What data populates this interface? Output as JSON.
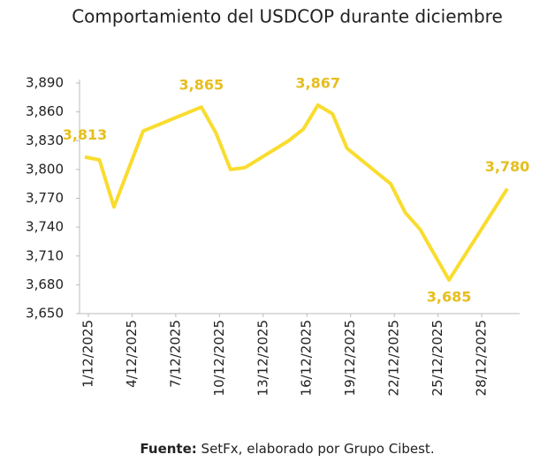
{
  "chart_data": {
    "type": "line",
    "title": "Comportamiento del USDCOP durante diciembre",
    "x": [
      "1/12/2025",
      "2/12/2025",
      "3/12/2025",
      "5/12/2025",
      "9/12/2025",
      "10/12/2025",
      "11/12/2025",
      "12/12/2025",
      "15/12/2025",
      "16/12/2025",
      "17/12/2025",
      "18/12/2025",
      "19/12/2025",
      "22/12/2025",
      "23/12/2025",
      "24/12/2025",
      "26/12/2025",
      "30/12/2025"
    ],
    "series": [
      {
        "name": "USDCOP",
        "color": "#f9dc2e",
        "values": [
          3813,
          3810,
          3761,
          3840,
          3865,
          3838,
          3800,
          3802,
          3830,
          3842,
          3867,
          3858,
          3822,
          3785,
          3755,
          3738,
          3685,
          3780
        ],
        "value_labels": [
          "3,813",
          null,
          null,
          null,
          "3,865",
          null,
          null,
          null,
          null,
          null,
          "3,867",
          null,
          null,
          null,
          null,
          null,
          "3,685",
          "3,780"
        ]
      }
    ],
    "ylim": [
      3650,
      3890
    ],
    "yticks": [
      {
        "value": 3650,
        "label": "3,650"
      },
      {
        "value": 3680,
        "label": "3,680"
      },
      {
        "value": 3710,
        "label": "3,710"
      },
      {
        "value": 3740,
        "label": "3,740"
      },
      {
        "value": 3770,
        "label": "3,770"
      },
      {
        "value": 3800,
        "label": "3,800"
      },
      {
        "value": 3830,
        "label": "3,830"
      },
      {
        "value": 3860,
        "label": "3,860"
      },
      {
        "value": 3890,
        "label": "3,890"
      }
    ],
    "xticks": [
      "1/12/2025",
      "4/12/2025",
      "7/12/2025",
      "10/12/2025",
      "13/12/2025",
      "16/12/2025",
      "19/12/2025",
      "22/12/2025",
      "25/12/2025",
      "28/12/2025"
    ],
    "source_label": "Fuente:",
    "source": "SetFx, elaborado por Grupo Cibest."
  }
}
